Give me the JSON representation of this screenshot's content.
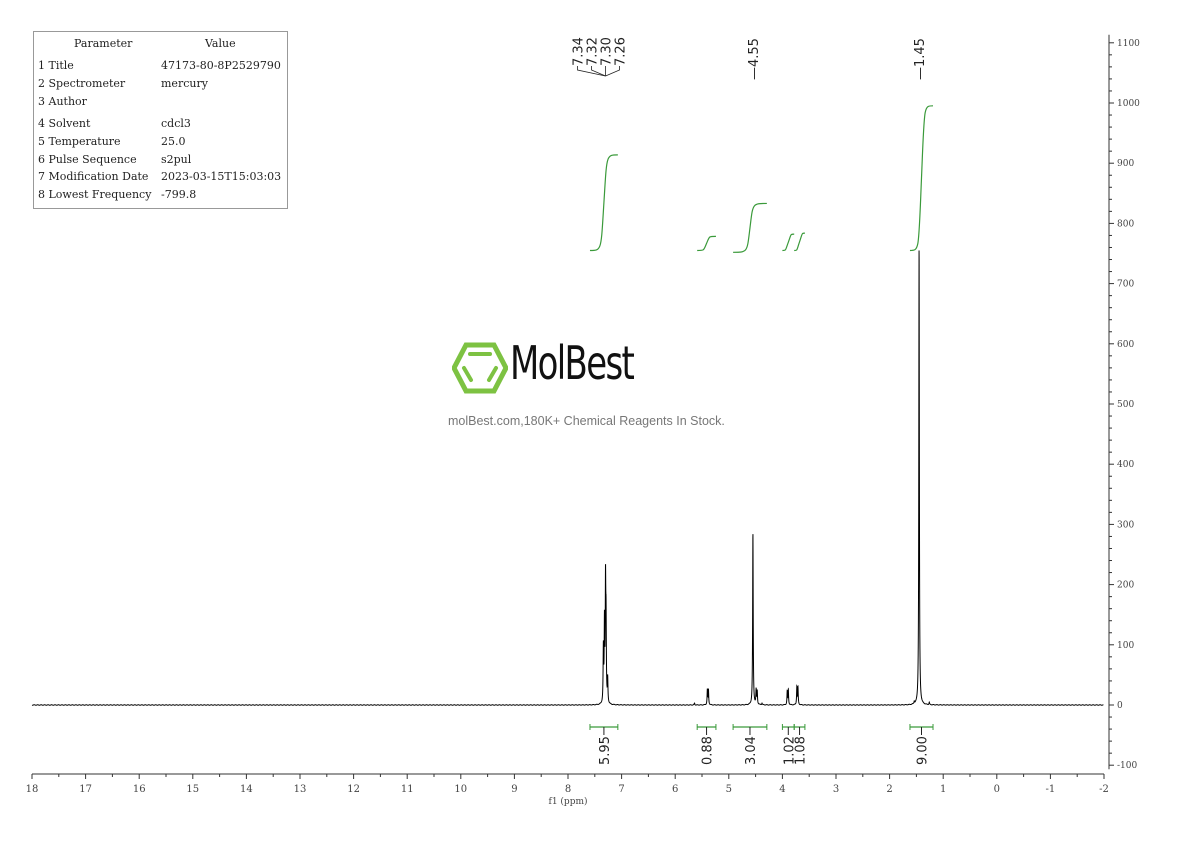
{
  "parameters": {
    "headers": [
      "Parameter",
      "Value"
    ],
    "rows": [
      {
        "key": "1 Title",
        "value": "47173-80-8P2529790"
      },
      {
        "key": "2 Spectrometer",
        "value": "mercury"
      },
      {
        "key": "3 Author",
        "value": ""
      },
      {
        "key": "4 Solvent",
        "value": "cdcl3"
      },
      {
        "key": "5 Temperature",
        "value": "25.0"
      },
      {
        "key": "6 Pulse Sequence",
        "value": "s2pul"
      },
      {
        "key": "7 Modification Date",
        "value": "2023-03-15T15:03:03"
      },
      {
        "key": "8 Lowest Frequency",
        "value": "-799.8"
      }
    ]
  },
  "watermark": {
    "logo_text": "MolBest",
    "tagline": "molBest.com,180K+ Chemical Reagents In Stock.",
    "logo_color": "#7dc242"
  },
  "chart_data": {
    "type": "line",
    "title": "",
    "xlabel": "f1 (ppm)",
    "ylabel": "",
    "xlim": [
      18,
      -2
    ],
    "ylim": [
      -100,
      1100
    ],
    "x_reversed": true,
    "x_ticks": [
      "18",
      "17",
      "16",
      "15",
      "14",
      "13",
      "12",
      "11",
      "10",
      "9",
      "8",
      "7",
      "6",
      "5",
      "4",
      "3",
      "2",
      "1",
      "0",
      "-1",
      "-2"
    ],
    "y_ticks": [
      "-100",
      "0",
      "100",
      "200",
      "300",
      "400",
      "500",
      "600",
      "700",
      "800",
      "900",
      "1000",
      "1100"
    ],
    "y_axis_position": "right",
    "grid": false,
    "line_color": "#000000",
    "integral_color": "#3a9a3a",
    "peaks": [
      {
        "ppm": 7.34,
        "height": 90
      },
      {
        "ppm": 7.32,
        "height": 130
      },
      {
        "ppm": 7.3,
        "height": 190
      },
      {
        "ppm": 7.29,
        "height": 120
      },
      {
        "ppm": 7.26,
        "height": 40
      },
      {
        "ppm": 5.64,
        "height": 3
      },
      {
        "ppm": 5.4,
        "height": 25
      },
      {
        "ppm": 5.38,
        "height": 25
      },
      {
        "ppm": 4.55,
        "height": 285
      },
      {
        "ppm": 4.49,
        "height": 24
      },
      {
        "ppm": 4.47,
        "height": 22
      },
      {
        "ppm": 4.38,
        "height": 3
      },
      {
        "ppm": 3.91,
        "height": 22
      },
      {
        "ppm": 3.89,
        "height": 25
      },
      {
        "ppm": 3.73,
        "height": 30
      },
      {
        "ppm": 3.71,
        "height": 28
      },
      {
        "ppm": 1.54,
        "height": 4
      },
      {
        "ppm": 1.45,
        "height": 760
      },
      {
        "ppm": 1.26,
        "height": 4
      }
    ],
    "peak_labels": [
      {
        "group": "aromatic",
        "labels": [
          "7.34",
          "7.32",
          "7.30",
          "7.26"
        ],
        "anchor_ppm": 7.3
      },
      {
        "group": "single",
        "labels": [
          "4.55"
        ],
        "anchor_ppm": 4.55
      },
      {
        "group": "single",
        "labels": [
          "1.45"
        ],
        "anchor_ppm": 1.45
      }
    ],
    "integrals": [
      {
        "from": 7.59,
        "to": 7.07,
        "value": "5.95"
      },
      {
        "from": 5.59,
        "to": 5.24,
        "value": "0.88"
      },
      {
        "from": 4.92,
        "to": 4.29,
        "value": "3.04"
      },
      {
        "from": 4.0,
        "to": 3.78,
        "value": "1.02"
      },
      {
        "from": 3.78,
        "to": 3.58,
        "value": "1.08"
      },
      {
        "from": 1.62,
        "to": 1.19,
        "value": "9.00"
      }
    ]
  }
}
